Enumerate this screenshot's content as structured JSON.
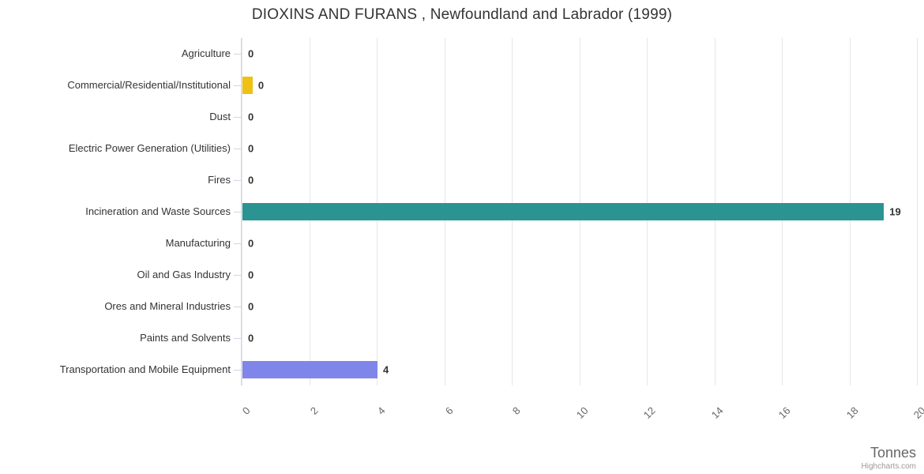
{
  "header": {
    "title": "DIOXINS AND FURANS , Newfoundland and Labrador (1999)"
  },
  "chart_data": {
    "type": "bar",
    "orientation": "horizontal",
    "title": "DIOXINS AND FURANS , Newfoundland and Labrador (1999)",
    "categories": [
      "Agriculture",
      "Commercial/Residential/Institutional",
      "Dust",
      "Electric Power Generation (Utilities)",
      "Fires",
      "Incineration and Waste Sources",
      "Manufacturing",
      "Oil and Gas Industry",
      "Ores and Mineral Industries",
      "Paints and Solvents",
      "Transportation and Mobile Equipment"
    ],
    "values": [
      0,
      0.3,
      0,
      0,
      0,
      19,
      0,
      0,
      0,
      0,
      4
    ],
    "data_labels": [
      "0",
      "0",
      "0",
      "0",
      "0",
      "19",
      "0",
      "0",
      "0",
      "0",
      "4"
    ],
    "bar_colors": [
      "#7cb5ec",
      "#eec113",
      "#7cb5ec",
      "#7cb5ec",
      "#7cb5ec",
      "#2b9492",
      "#7cb5ec",
      "#7cb5ec",
      "#7cb5ec",
      "#7cb5ec",
      "#8085e9"
    ],
    "xlabel": "Tonnes",
    "ylabel": "",
    "xlim": [
      0,
      20
    ],
    "xticks": [
      0,
      2,
      4,
      6,
      8,
      10,
      12,
      14,
      16,
      18,
      20
    ],
    "grid": true,
    "tick_label_rotation": -45,
    "legend": "none",
    "credit": "Highcharts.com"
  }
}
